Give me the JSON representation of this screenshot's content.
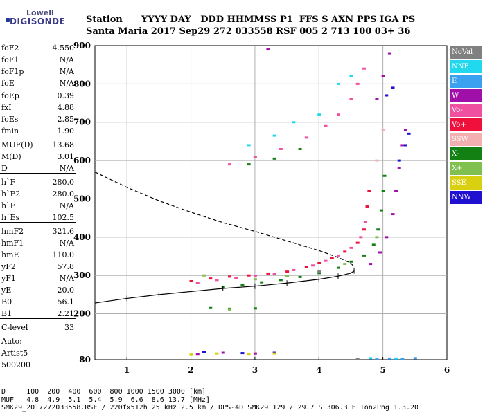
{
  "logo": {
    "line1": "Lowell",
    "line2": "DIGISONDE"
  },
  "header": {
    "row1": "Station      YYYY DAY   DDD HHMMSS P1  FFS S AXN PPS IGA PS",
    "row2": "Santa Maria 2017 Sep29 272 033558 RSF 005 2 713 100 03+ 36"
  },
  "params": [
    {
      "label": "foF2",
      "value": "4.550"
    },
    {
      "label": "foF1",
      "value": "N/A"
    },
    {
      "label": "foF1p",
      "value": "N/A"
    },
    {
      "label": "foE",
      "value": "N/A"
    },
    {
      "label": "foEp",
      "value": "0.39"
    },
    {
      "label": "fxI",
      "value": "4.88"
    },
    {
      "label": "foEs",
      "value": "2.85"
    },
    {
      "label": "fmin",
      "value": "1.90"
    },
    {
      "label": "MUF(D)",
      "value": "13.68"
    },
    {
      "label": "M(D)",
      "value": "3.01"
    },
    {
      "label": "D",
      "value": "N/A"
    },
    {
      "label": "h`F",
      "value": "280.0"
    },
    {
      "label": "h`F2",
      "value": "280.0"
    },
    {
      "label": "h`E",
      "value": "N/A"
    },
    {
      "label": "h`Es",
      "value": "102.5"
    },
    {
      "label": "hmF2",
      "value": "321.6"
    },
    {
      "label": "hmF1",
      "value": "N/A"
    },
    {
      "label": "hmE",
      "value": "110.0"
    },
    {
      "label": "yF2",
      "value": "57.8"
    },
    {
      "label": "yF1",
      "value": "N/A"
    },
    {
      "label": "yE",
      "value": "20.0"
    },
    {
      "label": "B0",
      "value": "56.1"
    },
    {
      "label": "B1",
      "value": "2.21"
    },
    {
      "label": "C-level",
      "value": "33"
    }
  ],
  "auto": {
    "line1": "Auto:",
    "line2": "Artist5",
    "line3": "500200"
  },
  "footer": {
    "row1": "D     100  200  400  600  800 1000 1500 3000 [km]",
    "row2": "MUF   4.8  4.9  5.1  5.4  5.9  6.6  8.6 13.7 [MHz]",
    "row3": "SMK29_2017272033558.RSF / 220fx512h 25 kHz 2.5 km / DPS-4D SMK29 129 / 29.7 S 306.3 E Ion2Png 1.3.20"
  },
  "legend": [
    {
      "label": "NoVal",
      "color": "#808080"
    },
    {
      "label": "NNE",
      "color": "#22d8ee"
    },
    {
      "label": "E",
      "color": "#3aa0f0"
    },
    {
      "label": "W",
      "color": "#a010a8"
    },
    {
      "label": "Vo-",
      "color": "#f050a0"
    },
    {
      "label": "Vo+",
      "color": "#f0103c"
    },
    {
      "label": "SSW",
      "color": "#f4b0b0"
    },
    {
      "label": "X-",
      "color": "#128012"
    },
    {
      "label": "X+",
      "color": "#7fc050"
    },
    {
      "label": "SSE",
      "color": "#d8d010"
    },
    {
      "label": "NNW",
      "color": "#2010d0"
    }
  ],
  "chart_data": {
    "type": "scatter",
    "xlim": [
      0.5,
      6
    ],
    "ylim": [
      80,
      900
    ],
    "xticks": [
      1,
      2,
      3,
      4,
      5,
      6
    ],
    "yticks": [
      80,
      200,
      300,
      400,
      500,
      600,
      700,
      800,
      900
    ],
    "grid": true,
    "legend_position": "right",
    "series": [
      {
        "name": "Vo+",
        "color": "#f0103c",
        "points": [
          [
            2.0,
            285
          ],
          [
            2.3,
            292
          ],
          [
            2.6,
            297
          ],
          [
            2.9,
            300
          ],
          [
            3.2,
            305
          ],
          [
            3.5,
            310
          ],
          [
            3.8,
            322
          ],
          [
            4.0,
            332
          ],
          [
            4.2,
            345
          ],
          [
            4.4,
            362
          ],
          [
            4.6,
            385
          ],
          [
            4.7,
            420
          ],
          [
            4.75,
            480
          ],
          [
            4.78,
            520
          ]
        ]
      },
      {
        "name": "Vo-",
        "color": "#f050a0",
        "points": [
          [
            2.1,
            280
          ],
          [
            2.4,
            288
          ],
          [
            2.7,
            293
          ],
          [
            3.0,
            298
          ],
          [
            3.3,
            304
          ],
          [
            3.6,
            314
          ],
          [
            3.9,
            326
          ],
          [
            4.1,
            338
          ],
          [
            4.3,
            352
          ],
          [
            4.5,
            372
          ],
          [
            4.65,
            400
          ],
          [
            4.72,
            440
          ],
          [
            2.6,
            590
          ],
          [
            3.0,
            610
          ],
          [
            3.4,
            630
          ],
          [
            3.8,
            660
          ],
          [
            4.1,
            690
          ],
          [
            4.3,
            720
          ],
          [
            4.5,
            760
          ],
          [
            4.6,
            800
          ],
          [
            4.7,
            840
          ]
        ]
      },
      {
        "name": "X-",
        "color": "#128012",
        "points": [
          [
            2.5,
            270
          ],
          [
            2.8,
            276
          ],
          [
            3.1,
            282
          ],
          [
            3.4,
            288
          ],
          [
            3.7,
            296
          ],
          [
            4.0,
            306
          ],
          [
            4.3,
            320
          ],
          [
            4.5,
            336
          ],
          [
            4.7,
            352
          ],
          [
            4.85,
            380
          ],
          [
            4.92,
            420
          ],
          [
            4.97,
            470
          ],
          [
            5.0,
            520
          ],
          [
            5.02,
            560
          ],
          [
            2.3,
            215
          ],
          [
            2.6,
            213
          ],
          [
            3.0,
            214
          ],
          [
            2.9,
            590
          ],
          [
            3.3,
            605
          ],
          [
            3.7,
            630
          ]
        ]
      },
      {
        "name": "X+",
        "color": "#7fc050",
        "points": [
          [
            3.0,
            290
          ],
          [
            3.5,
            298
          ],
          [
            4.0,
            312
          ],
          [
            4.4,
            330
          ],
          [
            4.9,
            400
          ],
          [
            2.2,
            300
          ],
          [
            2.6,
            210
          ]
        ]
      },
      {
        "name": "W",
        "color": "#a010a8",
        "points": [
          [
            4.8,
            330
          ],
          [
            4.95,
            360
          ],
          [
            5.05,
            400
          ],
          [
            5.15,
            460
          ],
          [
            5.2,
            520
          ],
          [
            5.25,
            580
          ],
          [
            5.3,
            640
          ],
          [
            5.35,
            680
          ],
          [
            4.9,
            760
          ],
          [
            5.0,
            820
          ],
          [
            5.1,
            880
          ],
          [
            2.1,
            95
          ],
          [
            2.5,
            98
          ],
          [
            3.0,
            96
          ],
          [
            3.2,
            890
          ]
        ]
      },
      {
        "name": "NNE",
        "color": "#22d8ee",
        "points": [
          [
            2.9,
            640
          ],
          [
            3.3,
            665
          ],
          [
            3.6,
            700
          ],
          [
            4.0,
            720
          ],
          [
            4.3,
            800
          ],
          [
            4.5,
            820
          ],
          [
            4.8,
            84
          ],
          [
            5.2,
            83
          ]
        ]
      },
      {
        "name": "E",
        "color": "#3aa0f0",
        "points": [
          [
            4.9,
            82
          ],
          [
            5.1,
            83
          ],
          [
            5.3,
            82
          ],
          [
            5.5,
            84
          ]
        ]
      },
      {
        "name": "NNW",
        "color": "#2010d0",
        "points": [
          [
            5.25,
            600
          ],
          [
            5.35,
            640
          ],
          [
            5.4,
            670
          ],
          [
            5.05,
            770
          ],
          [
            5.15,
            790
          ],
          [
            2.2,
            100
          ],
          [
            2.8,
            97
          ],
          [
            3.3,
            98
          ]
        ]
      },
      {
        "name": "SSE",
        "color": "#d8d010",
        "points": [
          [
            2.0,
            94
          ],
          [
            2.4,
            96
          ],
          [
            2.9,
            95
          ],
          [
            3.3,
            96
          ]
        ]
      },
      {
        "name": "SSW",
        "color": "#f4b0b0",
        "points": [
          [
            4.9,
            600
          ],
          [
            5.0,
            680
          ]
        ]
      },
      {
        "name": "NoVal",
        "color": "#808080",
        "points": [
          [
            4.0,
            310
          ],
          [
            4.6,
            82
          ]
        ]
      }
    ],
    "profile_upper": [
      [
        0.5,
        570
      ],
      [
        1.0,
        530
      ],
      [
        1.5,
        495
      ],
      [
        2.0,
        465
      ],
      [
        2.5,
        438
      ],
      [
        3.0,
        415
      ],
      [
        3.5,
        390
      ],
      [
        4.0,
        365
      ],
      [
        4.3,
        347
      ],
      [
        4.5,
        332
      ],
      [
        4.55,
        322
      ]
    ],
    "profile_lower": [
      [
        0.5,
        228
      ],
      [
        1.0,
        240
      ],
      [
        1.5,
        250
      ],
      [
        2.0,
        258
      ],
      [
        2.5,
        266
      ],
      [
        3.0,
        272
      ],
      [
        3.5,
        280
      ],
      [
        4.0,
        290
      ],
      [
        4.3,
        298
      ],
      [
        4.5,
        306
      ],
      [
        4.55,
        312
      ]
    ]
  }
}
